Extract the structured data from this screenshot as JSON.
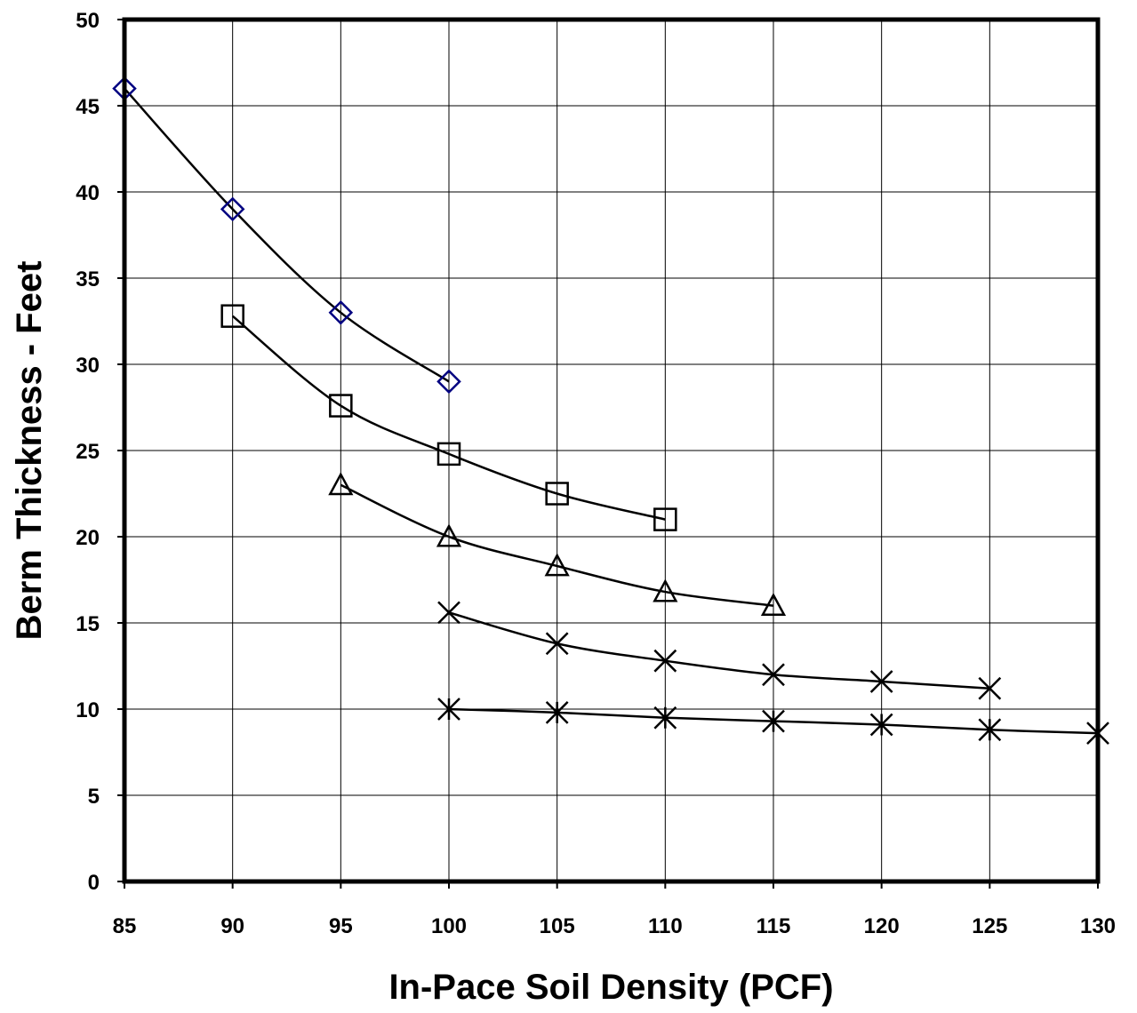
{
  "chart_data": {
    "type": "line",
    "xlabel": "In-Pace Soil Density (PCF)",
    "ylabel": "Berm Thickness - Feet",
    "xlim": [
      85,
      130
    ],
    "ylim": [
      0,
      50
    ],
    "x_ticks": [
      85,
      90,
      95,
      100,
      105,
      110,
      115,
      120,
      125,
      130
    ],
    "y_ticks": [
      0,
      5,
      10,
      15,
      20,
      25,
      30,
      35,
      40,
      45,
      50
    ],
    "grid": true,
    "legend": "none",
    "series": [
      {
        "marker": "diamond",
        "color": "#000080",
        "x": [
          85,
          90,
          95,
          100
        ],
        "y": [
          46,
          39,
          33,
          29
        ]
      },
      {
        "marker": "square",
        "color": "#000000",
        "x": [
          90,
          95,
          100,
          105,
          110
        ],
        "y": [
          32.8,
          27.6,
          24.8,
          22.5,
          21
        ]
      },
      {
        "marker": "triangle",
        "color": "#000000",
        "x": [
          95,
          100,
          105,
          110,
          115
        ],
        "y": [
          23,
          20,
          18.3,
          16.8,
          16
        ]
      },
      {
        "marker": "x",
        "color": "#000000",
        "x": [
          100,
          105,
          110,
          115,
          120,
          125
        ],
        "y": [
          15.6,
          13.8,
          12.8,
          12,
          11.6,
          11.2
        ]
      },
      {
        "marker": "star",
        "color": "#000000",
        "x": [
          100,
          105,
          110,
          115,
          120,
          125,
          130
        ],
        "y": [
          10,
          9.8,
          9.5,
          9.3,
          9.1,
          8.8,
          8.6
        ]
      }
    ]
  }
}
